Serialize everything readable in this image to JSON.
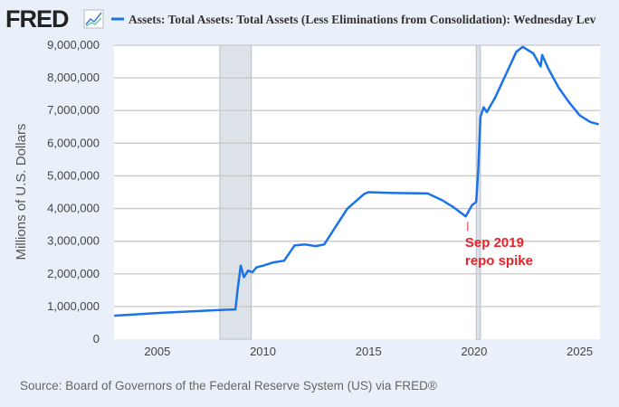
{
  "header": {
    "logo_text": "FRED",
    "logo_icon": "line-chart-icon"
  },
  "chart_data": {
    "type": "line",
    "title": "Assets: Total Assets: Total Assets (Less Eliminations from Consolidation): Wednesday Lev",
    "xlabel": "",
    "ylabel": "Millions of U.S. Dollars",
    "xlim": [
      2002.95,
      2025.96
    ],
    "ylim": [
      0,
      9000000
    ],
    "x_ticks": [
      2005,
      2010,
      2015,
      2020,
      2025
    ],
    "y_ticks": [
      0,
      1000000,
      2000000,
      3000000,
      4000000,
      5000000,
      6000000,
      7000000,
      8000000,
      9000000
    ],
    "y_tick_labels": [
      "0",
      "1,000,000",
      "2,000,000",
      "3,000,000",
      "4,000,000",
      "5,000,000",
      "6,000,000",
      "7,000,000",
      "8,000,000",
      "9,000,000"
    ],
    "grid": true,
    "recessions": [
      [
        2007.96,
        2009.45
      ],
      [
        2020.1,
        2020.3
      ]
    ],
    "series": [
      {
        "name": "Assets: Total Assets: Total Assets (Less Eliminations from Consolidation): Wednesday Lev",
        "color": "#1a73e8",
        "x": [
          2002.96,
          2005,
          2007.5,
          2008.7,
          2008.8,
          2008.95,
          2009.1,
          2009.3,
          2009.5,
          2009.7,
          2010,
          2010.5,
          2011,
          2011.5,
          2012,
          2012.5,
          2012.9,
          2013.5,
          2014,
          2014.8,
          2015,
          2016,
          2017,
          2017.8,
          2018.5,
          2019,
          2019.6,
          2019.9,
          2020.1,
          2020.2,
          2020.3,
          2020.45,
          2020.6,
          2021,
          2021.5,
          2022,
          2022.3,
          2022.8,
          2023.15,
          2023.22,
          2023.5,
          2024,
          2024.5,
          2025,
          2025.5,
          2025.9
        ],
        "values": [
          720000,
          800000,
          880000,
          910000,
          1500000,
          2250000,
          1900000,
          2100000,
          2050000,
          2200000,
          2250000,
          2350000,
          2400000,
          2870000,
          2900000,
          2850000,
          2900000,
          3500000,
          4000000,
          4450000,
          4500000,
          4480000,
          4470000,
          4460000,
          4250000,
          4050000,
          3760000,
          4100000,
          4200000,
          5250000,
          6800000,
          7100000,
          6950000,
          7400000,
          8100000,
          8800000,
          8950000,
          8750000,
          8350000,
          8700000,
          8300000,
          7700000,
          7250000,
          6850000,
          6650000,
          6580000
        ]
      }
    ],
    "annotations": [
      {
        "text_line1": "Sep 2019",
        "text_line2": "repo spike",
        "x": 2019.7,
        "y": 3760000,
        "color": "#e8222a"
      }
    ]
  },
  "footer": {
    "source": "Source: Board of Governors of the Federal Reserve System (US) via FRED®"
  }
}
